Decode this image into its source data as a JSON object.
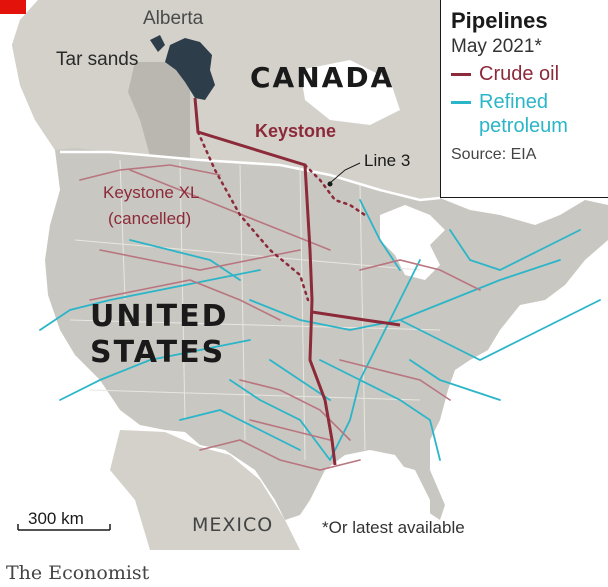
{
  "legend": {
    "title": "Pipelines",
    "subtitle": "May 2021*",
    "items": [
      {
        "label": "Crude oil",
        "color": "#8c2a3a"
      },
      {
        "label": "Refined petroleum",
        "color": "#2bb5c8"
      }
    ],
    "source": "Source: EIA"
  },
  "labels": {
    "alberta": "Alberta",
    "tar_sands": "Tar sands",
    "canada": "CANADA",
    "united": "UNITED",
    "states": "STATES",
    "mexico": "MEXICO",
    "keystone": "Keystone",
    "keystone_xl": "Keystone XL",
    "cancelled": "(cancelled)",
    "line3": "Line 3"
  },
  "scale": {
    "label": "300 km"
  },
  "footnote": "*Or latest available",
  "brand": "The Economist",
  "colors": {
    "land_us": "#c9c7c1",
    "land_canada": "#d9d7d0",
    "water": "#ffffff",
    "crude": "#8c2a3a",
    "refined": "#2bb5c8",
    "tar_sands": "#2e3d4a",
    "alberta": "#b9b7b0",
    "brand_red": "#e3120b"
  }
}
